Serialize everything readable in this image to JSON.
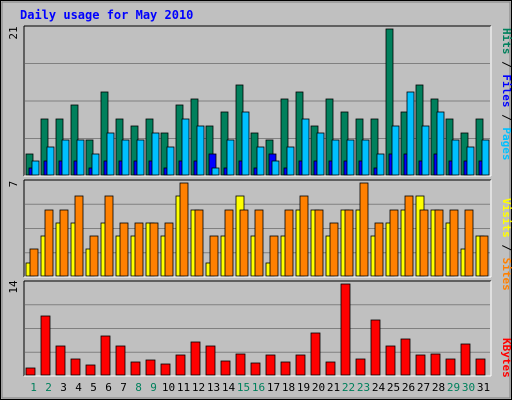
{
  "chart_data": {
    "type": "bar",
    "title": "Daily usage for May 2010",
    "categories": [
      "1",
      "2",
      "3",
      "4",
      "5",
      "6",
      "7",
      "8",
      "9",
      "10",
      "11",
      "12",
      "13",
      "14",
      "15",
      "16",
      "17",
      "18",
      "19",
      "20",
      "21",
      "22",
      "23",
      "24",
      "25",
      "26",
      "27",
      "28",
      "29",
      "30",
      "31"
    ],
    "weekend_days": [
      "1",
      "2",
      "8",
      "9",
      "15",
      "16",
      "22",
      "23",
      "29",
      "30"
    ],
    "panels": [
      {
        "id": "top",
        "ymax_label": "21",
        "ylim": [
          0,
          21
        ],
        "legend": [
          "Pages",
          "Files",
          "Hits"
        ],
        "legend_colors": [
          "#00c0ff",
          "#0000ff",
          "#00805c"
        ],
        "series": [
          {
            "name": "Hits",
            "color": "#00805c",
            "values": [
              3,
              8,
              8,
              10,
              5,
              12,
              8,
              7,
              8,
              6,
              10,
              11,
              7,
              9,
              13,
              6,
              5,
              11,
              12,
              7,
              11,
              9,
              8,
              8,
              21,
              9,
              13,
              11,
              8,
              6,
              8
            ]
          },
          {
            "name": "Files",
            "color": "#0000ff",
            "values": [
              1,
              2,
              2,
              2,
              1,
              2,
              2,
              2,
              2,
              1,
              2,
              2,
              3,
              1,
              2,
              1,
              3,
              1,
              2,
              2,
              2,
              2,
              2,
              1,
              3,
              3,
              2,
              3,
              2,
              2,
              2
            ]
          },
          {
            "name": "Pages",
            "color": "#00c0ff",
            "values": [
              2,
              4,
              5,
              5,
              3,
              6,
              5,
              5,
              6,
              4,
              8,
              7,
              1,
              5,
              9,
              4,
              2,
              4,
              8,
              6,
              5,
              5,
              5,
              3,
              7,
              12,
              7,
              9,
              5,
              4,
              5
            ]
          }
        ]
      },
      {
        "id": "middle",
        "ymax_label": "7",
        "ylim": [
          0,
          7
        ],
        "legend": [
          "Sites",
          "Visits"
        ],
        "legend_colors": [
          "#ff8000",
          "#ffff00"
        ],
        "series": [
          {
            "name": "Visits",
            "color": "#ffff00",
            "values": [
              1,
              3,
              4,
              4,
              2,
              4,
              3,
              3,
              4,
              3,
              6,
              5,
              1,
              3,
              6,
              3,
              1,
              3,
              5,
              5,
              3,
              5,
              5,
              3,
              4,
              5,
              6,
              5,
              4,
              2,
              3
            ]
          },
          {
            "name": "Sites",
            "color": "#ff8000",
            "values": [
              2,
              5,
              5,
              6,
              3,
              6,
              4,
              4,
              4,
              4,
              7,
              5,
              3,
              5,
              5,
              5,
              3,
              5,
              6,
              5,
              4,
              5,
              7,
              4,
              5,
              6,
              5,
              5,
              5,
              5,
              3
            ]
          }
        ]
      },
      {
        "id": "bottom",
        "ymax_label": "14",
        "ylim": [
          0,
          14
        ],
        "legend": [
          "KBytes"
        ],
        "legend_colors": [
          "#ff0000"
        ],
        "series": [
          {
            "name": "KBytes",
            "color": "#ff0000",
            "values": [
              1,
              9,
              4.5,
              2.5,
              1.5,
              6,
              4.5,
              2,
              2.3,
              1.7,
              3,
              5,
              4.5,
              2.2,
              3.2,
              1.8,
              3,
              2,
              3,
              6.5,
              2,
              14,
              2.5,
              8.5,
              4.5,
              5.5,
              3,
              3.2,
              2.5,
              4.8,
              2.5
            ]
          }
        ]
      }
    ],
    "grid": true
  }
}
